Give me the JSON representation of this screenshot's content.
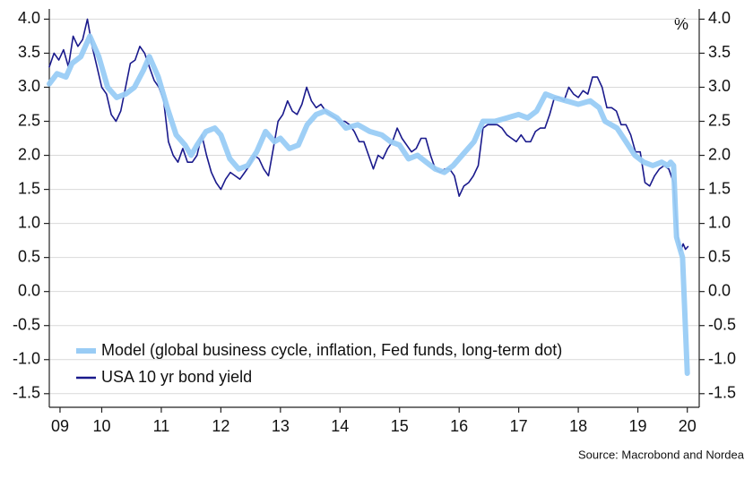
{
  "chart_data": {
    "type": "line",
    "unit_label": "%",
    "source": "Source: Macrobond and Nordea",
    "xlim": [
      2009.62,
      2020.53
    ],
    "xticks": [
      {
        "value": 2009.8,
        "label": "09"
      },
      {
        "value": 2010.5,
        "label": "10"
      },
      {
        "value": 2011.5,
        "label": "11"
      },
      {
        "value": 2012.5,
        "label": "12"
      },
      {
        "value": 2013.5,
        "label": "13"
      },
      {
        "value": 2014.5,
        "label": "14"
      },
      {
        "value": 2015.5,
        "label": "15"
      },
      {
        "value": 2016.5,
        "label": "16"
      },
      {
        "value": 2017.5,
        "label": "17"
      },
      {
        "value": 2018.5,
        "label": "18"
      },
      {
        "value": 2019.5,
        "label": "19"
      },
      {
        "value": 2020.33,
        "label": "20"
      }
    ],
    "ylim": [
      -1.7,
      4.15
    ],
    "yticks": [
      {
        "value": 4,
        "label": "4.0"
      },
      3.5,
      {
        "value": 3,
        "label": "3.0"
      },
      2.5,
      {
        "value": 2,
        "label": "2.0"
      },
      1.5,
      {
        "value": 1,
        "label": "1.0"
      },
      0.5,
      {
        "value": 0,
        "label": "0.0"
      },
      -0.5,
      {
        "value": -1,
        "label": "-1.0"
      },
      -1.5
    ],
    "y2lim": [
      -1.7,
      4.15
    ],
    "y2ticks": [
      {
        "value": 4,
        "label": "4.0"
      },
      3.5,
      {
        "value": 3,
        "label": "3.0"
      },
      2.5,
      {
        "value": 2,
        "label": "2.0"
      },
      1.5,
      {
        "value": 1,
        "label": "1.0"
      },
      0.5,
      {
        "value": 0,
        "label": "0.0"
      },
      -0.5,
      {
        "value": -1,
        "label": "-1.0"
      },
      -1.5
    ],
    "grid": true,
    "legend": "lower left",
    "series": [
      {
        "name": "Model (global business cycle, inflation, Fed funds, long-term dot)",
        "color": "#99ccf5",
        "width": 6,
        "x": [
          2009.62,
          2009.75,
          2009.9,
          2010.0,
          2010.15,
          2010.3,
          2010.45,
          2010.6,
          2010.75,
          2010.9,
          2011.05,
          2011.2,
          2011.3,
          2011.45,
          2011.6,
          2011.75,
          2011.9,
          2012.0,
          2012.1,
          2012.25,
          2012.4,
          2012.5,
          2012.65,
          2012.8,
          2012.95,
          2013.1,
          2013.25,
          2013.4,
          2013.5,
          2013.65,
          2013.8,
          2013.95,
          2014.1,
          2014.25,
          2014.45,
          2014.6,
          2014.8,
          2015.0,
          2015.2,
          2015.35,
          2015.5,
          2015.65,
          2015.8,
          2015.95,
          2016.1,
          2016.25,
          2016.4,
          2016.55,
          2016.75,
          2016.9,
          2017.1,
          2017.3,
          2017.5,
          2017.65,
          2017.8,
          2017.95,
          2018.1,
          2018.3,
          2018.5,
          2018.7,
          2018.85,
          2018.95,
          2019.15,
          2019.3,
          2019.45,
          2019.6,
          2019.75,
          2019.9,
          2020.0,
          2020.05,
          2020.1,
          2020.15,
          2020.25,
          2020.33
        ],
        "values": [
          3.05,
          3.2,
          3.15,
          3.35,
          3.45,
          3.75,
          3.45,
          3.0,
          2.85,
          2.9,
          3.0,
          3.25,
          3.45,
          3.15,
          2.7,
          2.3,
          2.15,
          2.0,
          2.15,
          2.35,
          2.4,
          2.3,
          1.95,
          1.8,
          1.85,
          2.05,
          2.35,
          2.2,
          2.25,
          2.1,
          2.15,
          2.45,
          2.6,
          2.65,
          2.55,
          2.4,
          2.45,
          2.35,
          2.3,
          2.2,
          2.15,
          1.95,
          2.0,
          1.9,
          1.8,
          1.75,
          1.85,
          2.0,
          2.2,
          2.5,
          2.5,
          2.55,
          2.6,
          2.55,
          2.65,
          2.9,
          2.85,
          2.8,
          2.75,
          2.8,
          2.7,
          2.5,
          2.4,
          2.2,
          2.0,
          1.9,
          1.85,
          1.9,
          1.85,
          1.9,
          1.85,
          0.8,
          0.5,
          -1.2
        ]
      },
      {
        "name": "USA 10 yr bond yield",
        "color": "#1a1a8c",
        "width": 1.6,
        "x": [
          2009.62,
          2009.7,
          2009.78,
          2009.86,
          2009.94,
          2010.02,
          2010.1,
          2010.18,
          2010.26,
          2010.34,
          2010.42,
          2010.5,
          2010.58,
          2010.66,
          2010.74,
          2010.82,
          2010.9,
          2010.98,
          2011.06,
          2011.14,
          2011.22,
          2011.3,
          2011.38,
          2011.46,
          2011.54,
          2011.62,
          2011.7,
          2011.78,
          2011.86,
          2011.94,
          2012.02,
          2012.1,
          2012.18,
          2012.26,
          2012.34,
          2012.42,
          2012.5,
          2012.58,
          2012.66,
          2012.74,
          2012.82,
          2012.9,
          2012.98,
          2013.06,
          2013.14,
          2013.22,
          2013.3,
          2013.38,
          2013.46,
          2013.54,
          2013.62,
          2013.7,
          2013.78,
          2013.86,
          2013.94,
          2014.02,
          2014.1,
          2014.18,
          2014.26,
          2014.34,
          2014.42,
          2014.5,
          2014.58,
          2014.66,
          2014.74,
          2014.82,
          2014.9,
          2014.98,
          2015.06,
          2015.14,
          2015.22,
          2015.3,
          2015.38,
          2015.46,
          2015.54,
          2015.62,
          2015.7,
          2015.78,
          2015.86,
          2015.94,
          2016.02,
          2016.1,
          2016.18,
          2016.26,
          2016.34,
          2016.42,
          2016.5,
          2016.58,
          2016.66,
          2016.74,
          2016.82,
          2016.9,
          2016.98,
          2017.06,
          2017.14,
          2017.22,
          2017.3,
          2017.38,
          2017.46,
          2017.54,
          2017.62,
          2017.7,
          2017.78,
          2017.86,
          2017.94,
          2018.02,
          2018.1,
          2018.18,
          2018.26,
          2018.34,
          2018.42,
          2018.5,
          2018.58,
          2018.66,
          2018.74,
          2018.82,
          2018.9,
          2018.98,
          2019.06,
          2019.14,
          2019.22,
          2019.3,
          2019.38,
          2019.46,
          2019.54,
          2019.62,
          2019.7,
          2019.78,
          2019.86,
          2019.94,
          2020.02,
          2020.1,
          2020.14,
          2020.18,
          2020.22,
          2020.26,
          2020.3,
          2020.34
        ],
        "values": [
          3.3,
          3.5,
          3.4,
          3.55,
          3.3,
          3.75,
          3.6,
          3.7,
          4.0,
          3.6,
          3.3,
          3.0,
          2.9,
          2.6,
          2.5,
          2.65,
          3.0,
          3.35,
          3.4,
          3.6,
          3.5,
          3.3,
          3.1,
          3.0,
          2.8,
          2.2,
          2.0,
          1.9,
          2.1,
          1.9,
          1.9,
          2.0,
          2.3,
          2.0,
          1.75,
          1.6,
          1.5,
          1.65,
          1.75,
          1.7,
          1.65,
          1.75,
          1.85,
          2.0,
          1.95,
          1.8,
          1.7,
          2.1,
          2.5,
          2.6,
          2.8,
          2.65,
          2.6,
          2.75,
          3.0,
          2.8,
          2.7,
          2.75,
          2.65,
          2.6,
          2.55,
          2.5,
          2.5,
          2.45,
          2.35,
          2.2,
          2.2,
          2.0,
          1.8,
          2.0,
          1.95,
          2.1,
          2.2,
          2.4,
          2.25,
          2.15,
          2.05,
          2.1,
          2.25,
          2.25,
          2.0,
          1.8,
          1.75,
          1.8,
          1.8,
          1.7,
          1.4,
          1.55,
          1.6,
          1.7,
          1.85,
          2.4,
          2.45,
          2.45,
          2.45,
          2.4,
          2.3,
          2.25,
          2.2,
          2.3,
          2.2,
          2.2,
          2.35,
          2.4,
          2.4,
          2.6,
          2.85,
          2.85,
          2.8,
          3.0,
          2.9,
          2.85,
          2.95,
          2.9,
          3.15,
          3.15,
          3.0,
          2.7,
          2.7,
          2.65,
          2.45,
          2.45,
          2.3,
          2.05,
          2.05,
          1.6,
          1.55,
          1.7,
          1.8,
          1.85,
          1.8,
          1.6,
          1.1,
          0.75,
          0.6,
          0.7,
          0.62,
          0.66
        ]
      }
    ]
  }
}
